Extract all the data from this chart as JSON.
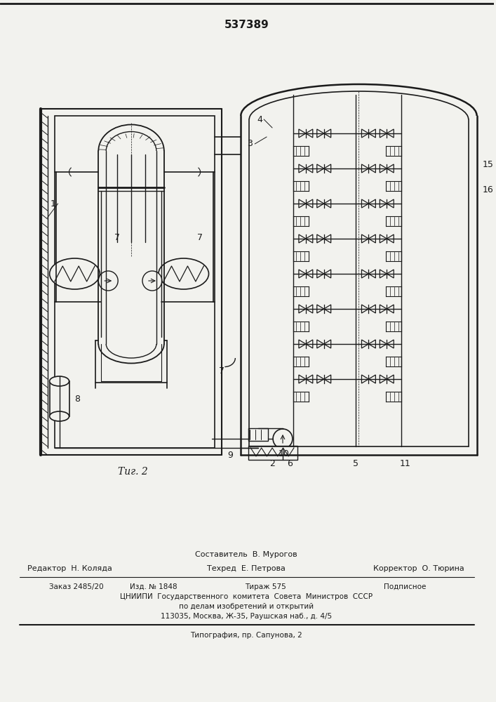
{
  "patent_number": "537389",
  "fig_label": "Τиг. 2",
  "bg_color": "#f2f2ee",
  "line_color": "#1a1a1a",
  "footer_sestavitel": "Составитель  В. Мурогов",
  "footer_redaktor": "Редактор  Н. Коляда",
  "footer_tehred": "Техред  Е. Петрова",
  "footer_korrektor": "Корректор  О. Тюрина",
  "footer_zakaz": "Заказ 2485/20",
  "footer_izd": "Изд. № 1848",
  "footer_tirazh": "Тираж 575",
  "footer_podpisnoe": "Подписное",
  "footer_cniip1": "ЦНИИПИ  Государственного  комитета  Совета  Министров  СССР",
  "footer_cniip2": "по делам изобретений и открытий",
  "footer_addr": "113035, Москва, Ж-35, Раушская наб., д. 4/5",
  "footer_tipografia": "Типография, пр. Сапунова, 2"
}
